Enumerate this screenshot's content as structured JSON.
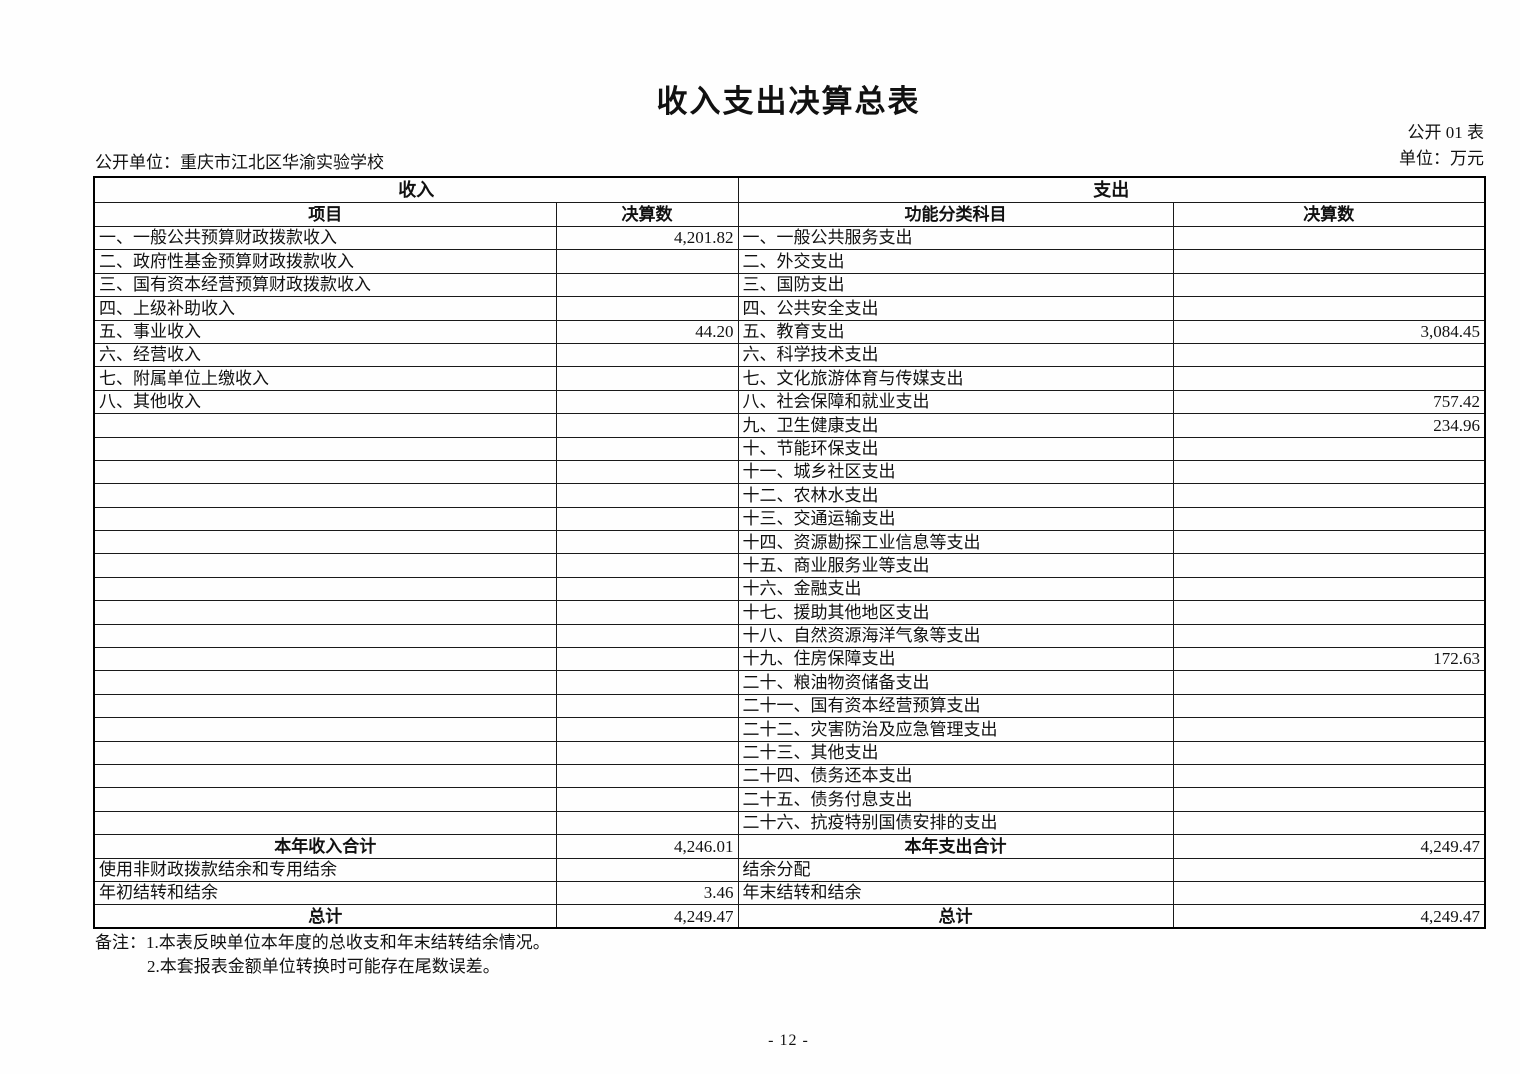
{
  "page": {
    "title": "收入支出决算总表",
    "table_no": "公开 01 表",
    "unit_label": "单位：万元",
    "org_label": "公开单位：重庆市江北区华渝实验学校",
    "page_number": "- 12 -"
  },
  "table": {
    "income_header": "收入",
    "expense_header": "支出",
    "columns": [
      "项目",
      "决算数",
      "功能分类科目",
      "决算数"
    ],
    "rows": [
      {
        "left": "一、一般公共预算财政拨款收入",
        "left_val": "4,201.82",
        "right": "一、一般公共服务支出",
        "right_val": ""
      },
      {
        "left": "二、政府性基金预算财政拨款收入",
        "left_val": "",
        "right": "二、外交支出",
        "right_val": ""
      },
      {
        "left": "三、国有资本经营预算财政拨款收入",
        "left_val": "",
        "right": "三、国防支出",
        "right_val": ""
      },
      {
        "left": "四、上级补助收入",
        "left_val": "",
        "right": "四、公共安全支出",
        "right_val": ""
      },
      {
        "left": "五、事业收入",
        "left_val": "44.20",
        "right": "五、教育支出",
        "right_val": "3,084.45"
      },
      {
        "left": "六、经营收入",
        "left_val": "",
        "right": "六、科学技术支出",
        "right_val": ""
      },
      {
        "left": "七、附属单位上缴收入",
        "left_val": "",
        "right": "七、文化旅游体育与传媒支出",
        "right_val": ""
      },
      {
        "left": "八、其他收入",
        "left_val": "",
        "right": "八、社会保障和就业支出",
        "right_val": "757.42"
      },
      {
        "left": "",
        "left_val": "",
        "right": "九、卫生健康支出",
        "right_val": "234.96"
      },
      {
        "left": "",
        "left_val": "",
        "right": "十、节能环保支出",
        "right_val": ""
      },
      {
        "left": "",
        "left_val": "",
        "right": "十一、城乡社区支出",
        "right_val": ""
      },
      {
        "left": "",
        "left_val": "",
        "right": "十二、农林水支出",
        "right_val": ""
      },
      {
        "left": "",
        "left_val": "",
        "right": "十三、交通运输支出",
        "right_val": ""
      },
      {
        "left": "",
        "left_val": "",
        "right": "十四、资源勘探工业信息等支出",
        "right_val": ""
      },
      {
        "left": "",
        "left_val": "",
        "right": "十五、商业服务业等支出",
        "right_val": ""
      },
      {
        "left": "",
        "left_val": "",
        "right": "十六、金融支出",
        "right_val": ""
      },
      {
        "left": "",
        "left_val": "",
        "right": "十七、援助其他地区支出",
        "right_val": ""
      },
      {
        "left": "",
        "left_val": "",
        "right": "十八、自然资源海洋气象等支出",
        "right_val": ""
      },
      {
        "left": "",
        "left_val": "",
        "right": "十九、住房保障支出",
        "right_val": "172.63"
      },
      {
        "left": "",
        "left_val": "",
        "right": "二十、粮油物资储备支出",
        "right_val": ""
      },
      {
        "left": "",
        "left_val": "",
        "right": "二十一、国有资本经营预算支出",
        "right_val": ""
      },
      {
        "left": "",
        "left_val": "",
        "right": "二十二、灾害防治及应急管理支出",
        "right_val": ""
      },
      {
        "left": "",
        "left_val": "",
        "right": "二十三、其他支出",
        "right_val": ""
      },
      {
        "left": "",
        "left_val": "",
        "right": "二十四、债务还本支出",
        "right_val": ""
      },
      {
        "left": "",
        "left_val": "",
        "right": "二十五、债务付息支出",
        "right_val": ""
      },
      {
        "left": "",
        "left_val": "",
        "right": "二十六、抗疫特别国债安排的支出",
        "right_val": ""
      }
    ],
    "summary_rows": [
      {
        "left": "本年收入合计",
        "left_val": "4,246.01",
        "right": "本年支出合计",
        "right_val": "4,249.47",
        "bold": true
      },
      {
        "left": "使用非财政拨款结余和专用结余",
        "left_val": "",
        "right": "结余分配",
        "right_val": "",
        "bold": false
      },
      {
        "left": "年初结转和结余",
        "left_val": "3.46",
        "right": "年末结转和结余",
        "right_val": "",
        "bold": false
      },
      {
        "left": "总计",
        "left_val": "4,249.47",
        "right": "总计",
        "right_val": "4,249.47",
        "bold": true
      }
    ],
    "notes": [
      "备注：1.本表反映单位本年度的总收支和年末结转结余情况。",
      "2.本套报表金额单位转换时可能存在尾数误差。"
    ]
  }
}
